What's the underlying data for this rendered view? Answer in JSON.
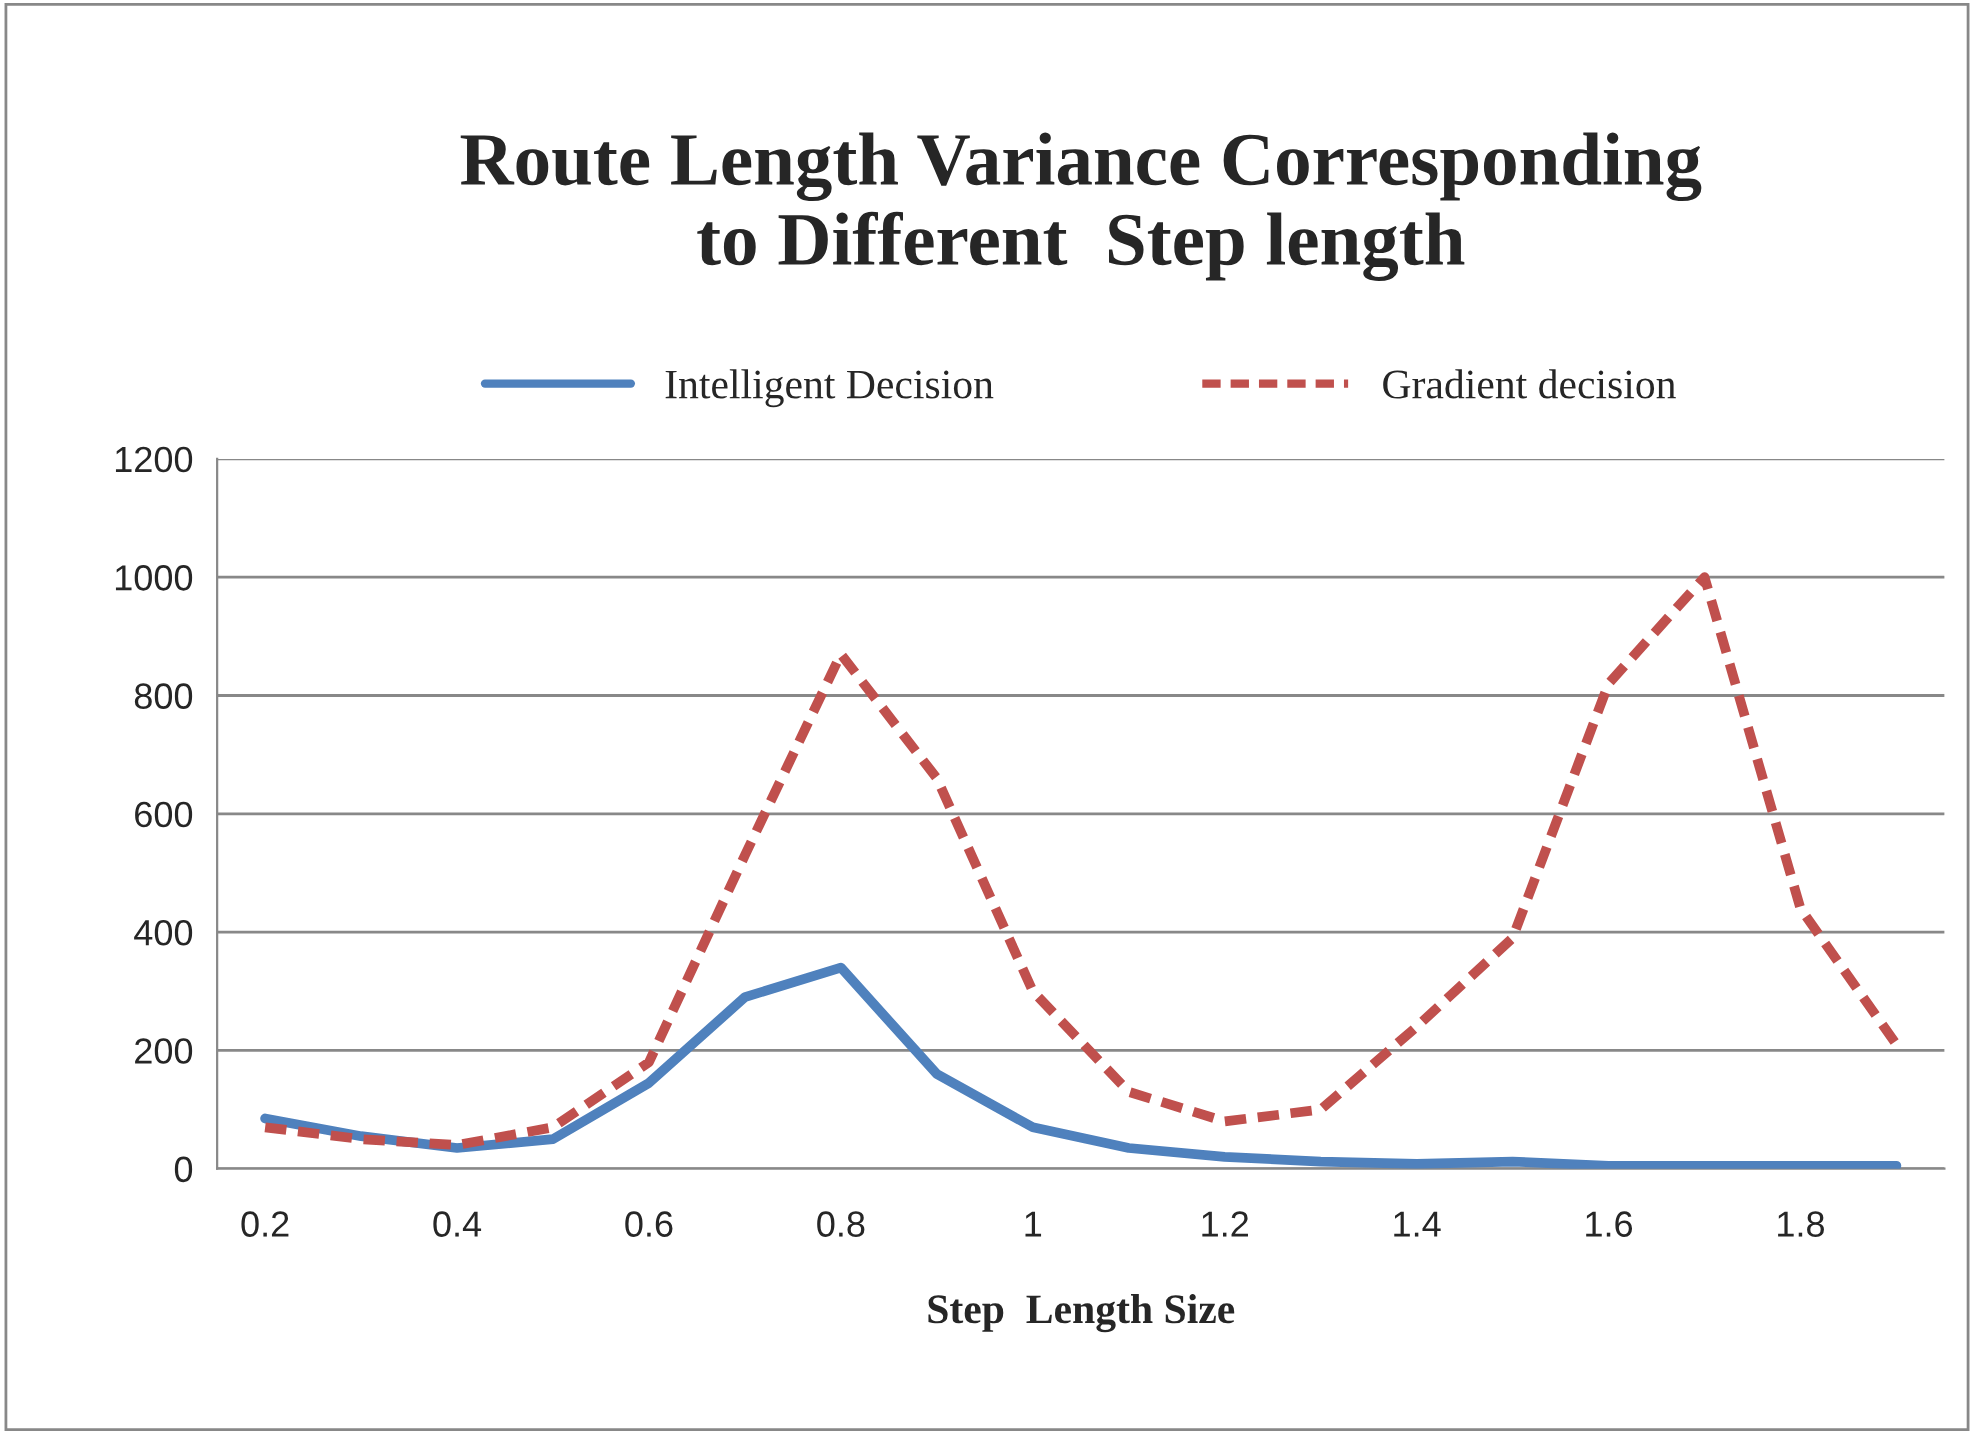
{
  "chart_data": {
    "type": "line",
    "title": "Route Length Variance Corresponding\nto Different  Step length",
    "xlabel": "Step  Length Size",
    "categories": [
      "0.2",
      null,
      "0.4",
      null,
      "0.6",
      null,
      "0.8",
      null,
      "1",
      null,
      "1.2",
      null,
      "1.4",
      null,
      "1.6",
      null,
      "1.8",
      null
    ],
    "series": [
      {
        "name": "Intelligent Decision",
        "color": "#4f81bd",
        "line_style": "solid",
        "values": [
          85,
          55,
          35,
          50,
          145,
          290,
          340,
          160,
          70,
          35,
          20,
          12,
          8,
          12,
          5,
          5,
          5,
          5
        ]
      },
      {
        "name": "Gradient decision",
        "color": "#c0504d",
        "line_style": "dashed",
        "values": [
          70,
          50,
          40,
          70,
          180,
          530,
          870,
          660,
          300,
          130,
          80,
          100,
          240,
          390,
          820,
          1000,
          440,
          210
        ]
      }
    ],
    "ylim": [
      0,
      1200
    ],
    "yticks": [
      0,
      200,
      400,
      600,
      800,
      1000,
      1200
    ],
    "grid": "y",
    "legend": "top",
    "marker": "none"
  }
}
